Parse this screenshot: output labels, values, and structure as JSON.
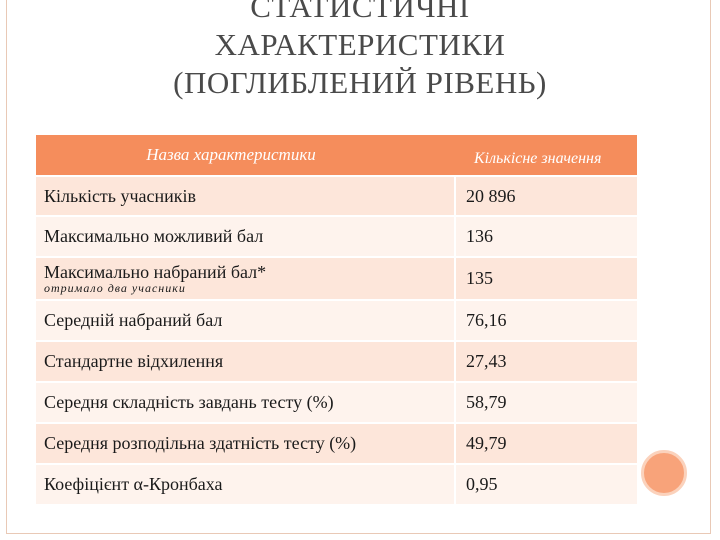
{
  "title": {
    "line1": "СТАТИСТИЧНІ",
    "line2": "ХАРАКТЕРИСТИКИ",
    "line3": "(ПОГЛИБЛЕНИЙ РІВЕНЬ)"
  },
  "table": {
    "header": {
      "name_col": "Назва характеристики",
      "value_col": "Кількісне значення"
    },
    "rows": [
      {
        "name": "Кількість учасників",
        "value": "20 896"
      },
      {
        "name": "Максимально можливий бал",
        "value": "136"
      },
      {
        "name": "Максимально набраний бал*",
        "note": "отримало два учасники",
        "value": "135"
      },
      {
        "name": "Середній набраний бал",
        "value": "76,16"
      },
      {
        "name": "Стандартне відхилення",
        "value": "27,43"
      },
      {
        "name": "Середня складність завдань тесту (%)",
        "value": "58,79"
      },
      {
        "name": "Середня розподільна здатність тесту (%)",
        "value": "49,79"
      },
      {
        "name": "Коефіцієнт α-Кронбаха",
        "value": "0,95"
      }
    ]
  },
  "colors": {
    "header_bg": "#f58d5c",
    "row_odd": "#fde6da",
    "row_even": "#fef3ed",
    "accent_circle": "#f8a37a"
  }
}
